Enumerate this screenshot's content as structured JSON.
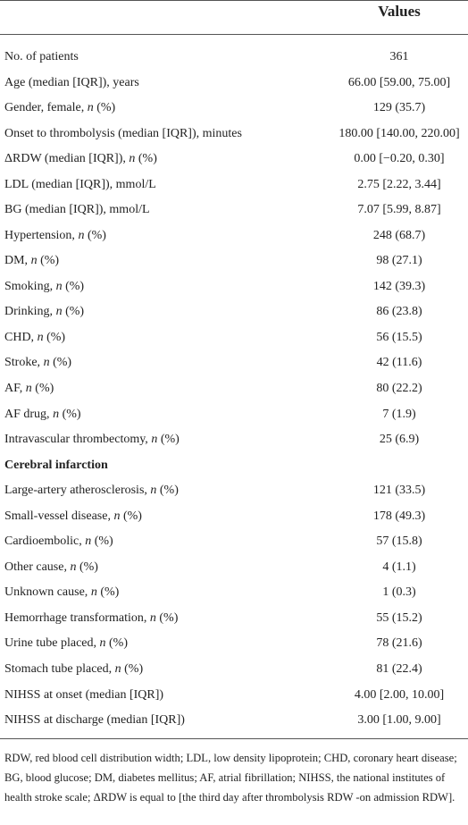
{
  "table": {
    "column_header": "Values",
    "rows": [
      [
        "No. of patients",
        "361"
      ],
      [
        "Age (median [IQR]), years",
        "66.00 [59.00, 75.00]"
      ],
      [
        "Gender, female, n (%)",
        "129 (35.7)"
      ],
      [
        "Onset to thrombolysis (median [IQR]), minutes",
        "180.00 [140.00, 220.00]"
      ],
      [
        "ΔRDW (median [IQR]), n (%)",
        "0.00 [−0.20, 0.30]"
      ],
      [
        "LDL (median [IQR]), mmol/L",
        "2.75 [2.22, 3.44]"
      ],
      [
        "BG (median [IQR]), mmol/L",
        "7.07 [5.99, 8.87]"
      ],
      [
        "Hypertension, n (%)",
        "248 (68.7)"
      ],
      [
        "DM, n (%)",
        "98 (27.1)"
      ],
      [
        "Smoking, n (%)",
        "142 (39.3)"
      ],
      [
        "Drinking, n (%)",
        "86 (23.8)"
      ],
      [
        "CHD, n (%)",
        "56 (15.5)"
      ],
      [
        "Stroke, n (%)",
        "42 (11.6)"
      ],
      [
        "AF, n (%)",
        "80 (22.2)"
      ],
      [
        "AF drug, n (%)",
        "7 (1.9)"
      ],
      [
        "Intravascular thrombectomy, n (%)",
        "25 (6.9)"
      ],
      [
        "Cerebral infarction"
      ],
      [
        "Large-artery atherosclerosis, n (%)",
        "121 (33.5)"
      ],
      [
        "Small-vessel disease, n (%)",
        "178 (49.3)"
      ],
      [
        "Cardioembolic, n (%)",
        "57 (15.8)"
      ],
      [
        "Other cause, n (%)",
        "4 (1.1)"
      ],
      [
        "Unknown cause, n (%)",
        "1 (0.3)"
      ],
      [
        "Hemorrhage transformation, n (%)",
        "55 (15.2)"
      ],
      [
        "Urine tube placed, n (%)",
        "78 (21.6)"
      ],
      [
        "Stomach tube placed, n (%)",
        "81 (22.4)"
      ],
      [
        "NIHSS at onset (median [IQR])",
        "4.00 [2.00, 10.00]"
      ],
      [
        "NIHSS at discharge (median [IQR])",
        "3.00 [1.00, 9.00]"
      ]
    ],
    "footnote": "RDW, red blood cell distribution width; LDL, low density lipoprotein; CHD, coronary heart disease; BG, blood glucose; DM, diabetes mellitus; AF, atrial fibrillation; NIHSS, the national institutes of health stroke scale; ΔRDW is equal to [the third day after thrombolysis RDW -on admission RDW]."
  }
}
